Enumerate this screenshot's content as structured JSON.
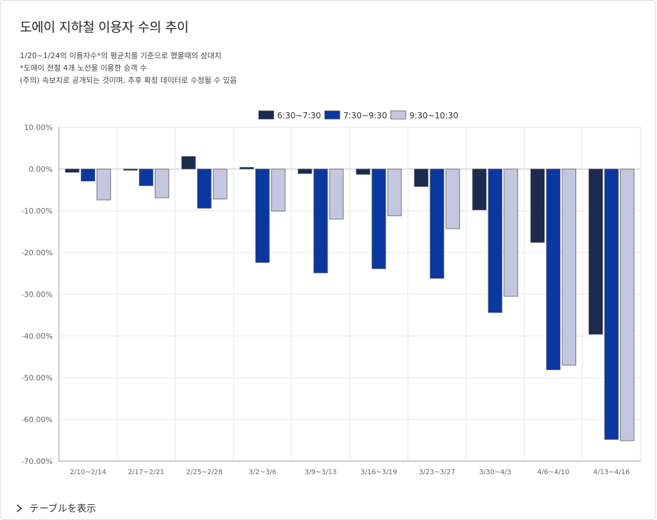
{
  "title": "도에이 지하철 이용자 수의 추이",
  "notes": [
    "1/20~1/24의 이용자수*의 평균치를 기준으로 했을때의 상대치",
    "*도에이 전철 4개 노선을 이용한 승객 수",
    "(주의) 속보치로 공개되는 것이며, 추후 확정 데이터로 수정될 수 있음"
  ],
  "toggle_label": "テーブルを表示",
  "colors": {
    "series": [
      "#1b2a4e",
      "#0a38a0",
      "#c5c6e0"
    ],
    "grid": "#e6e6e6",
    "axis": "#9a9a9a",
    "text": "#666666"
  },
  "chart_data": {
    "type": "bar",
    "categories": [
      "2/10~2/14",
      "2/17~2/21",
      "2/25~2/28",
      "3/2~3/6",
      "3/9~3/13",
      "3/16~3/19",
      "3/23~3/27",
      "3/30~4/3",
      "4/6~4/10",
      "4/13~4/16"
    ],
    "series": [
      {
        "name": "6:30~7:30",
        "values": [
          -0.8,
          -0.3,
          3.0,
          0.4,
          -1.1,
          -1.3,
          -4.2,
          -9.8,
          -17.6,
          -39.6
        ]
      },
      {
        "name": "7:30~9:30",
        "values": [
          -2.9,
          -4.0,
          -9.4,
          -22.4,
          -24.9,
          -23.9,
          -26.2,
          -34.4,
          -48.1,
          -64.8
        ]
      },
      {
        "name": "9:30~10:30",
        "values": [
          -7.4,
          -6.9,
          -7.2,
          -10.1,
          -12.0,
          -11.2,
          -14.3,
          -30.5,
          -47.0,
          -65.1
        ]
      }
    ],
    "ylim": [
      -70,
      10
    ],
    "yticks": [
      10,
      0,
      -10,
      -20,
      -30,
      -40,
      -50,
      -60,
      -70
    ],
    "ytick_labels": [
      "10.00%",
      "0.00%",
      "-10.00%",
      "-20.00%",
      "-30.00%",
      "-40.00%",
      "-50.00%",
      "-60.00%",
      "-70.00%"
    ],
    "legend_position": "top-center",
    "grid": true
  }
}
